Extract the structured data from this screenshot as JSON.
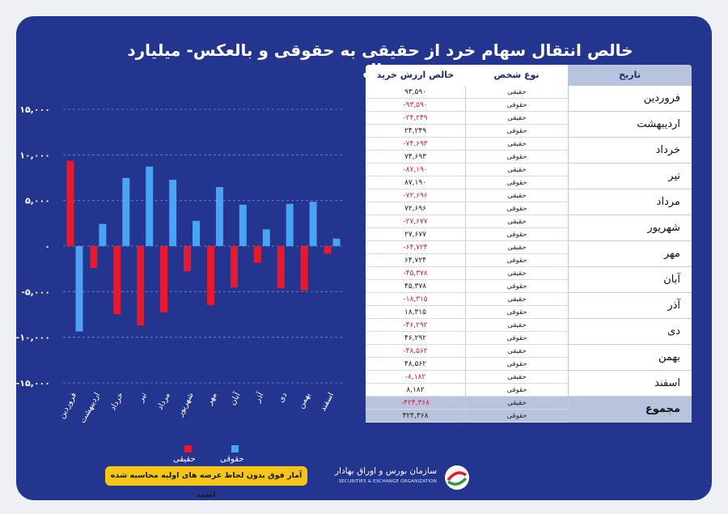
{
  "title": "خالص انتقال سهام خرد از حقیقی به حقوقی و بالعکس- میلیارد ریال",
  "colors": {
    "background": "#23358f",
    "haghighi": "#e8192c",
    "hoghoghi": "#4aa3f5",
    "negative_text": "#d22040",
    "header_fill": "#b8c3dd",
    "note_fill": "#f5c518"
  },
  "table": {
    "headers": {
      "date": "تاریخ",
      "type": "نوع شخص",
      "value": "خالص ارزش خرید"
    },
    "months": [
      {
        "name": "فروردین",
        "rows": [
          {
            "type": "حقیقی",
            "value": "۹۳,۵۹۰",
            "neg": false
          },
          {
            "type": "حقوقی",
            "value": "-۹۳,۵۹۰",
            "neg": true
          }
        ]
      },
      {
        "name": "اردیبهشت",
        "rows": [
          {
            "type": "حقیقی",
            "value": "-۲۴,۲۴۹",
            "neg": true
          },
          {
            "type": "حقوقی",
            "value": "۲۴,۲۴۹",
            "neg": false
          }
        ]
      },
      {
        "name": "خرداد",
        "rows": [
          {
            "type": "حقیقی",
            "value": "-۷۴,۶۹۳",
            "neg": true
          },
          {
            "type": "حقوقی",
            "value": "۷۴,۶۹۳",
            "neg": false
          }
        ]
      },
      {
        "name": "تیر",
        "rows": [
          {
            "type": "حقیقی",
            "value": "-۸۷,۱۹۰",
            "neg": true
          },
          {
            "type": "حقوقی",
            "value": "۸۷,۱۹۰",
            "neg": false
          }
        ]
      },
      {
        "name": "مرداد",
        "rows": [
          {
            "type": "حقیقی",
            "value": "-۷۲,۶۹۶",
            "neg": true
          },
          {
            "type": "حقوقی",
            "value": "۷۲,۶۹۶",
            "neg": false
          }
        ]
      },
      {
        "name": "شهریور",
        "rows": [
          {
            "type": "حقیقی",
            "value": "-۲۷,۶۷۷",
            "neg": true
          },
          {
            "type": "حقوقی",
            "value": "۲۷,۶۷۷",
            "neg": false
          }
        ]
      },
      {
        "name": "مهر",
        "rows": [
          {
            "type": "حقیقی",
            "value": "-۶۴,۷۲۴",
            "neg": true
          },
          {
            "type": "حقوقی",
            "value": "۶۴,۷۲۴",
            "neg": false
          }
        ]
      },
      {
        "name": "آبان",
        "rows": [
          {
            "type": "حقیقی",
            "value": "-۴۵,۳۷۸",
            "neg": true
          },
          {
            "type": "حقوقی",
            "value": "۴۵,۳۷۸",
            "neg": false
          }
        ]
      },
      {
        "name": "آذر",
        "rows": [
          {
            "type": "حقیقی",
            "value": "-۱۸,۳۱۵",
            "neg": true
          },
          {
            "type": "حقوقی",
            "value": "۱۸,۳۱۵",
            "neg": false
          }
        ]
      },
      {
        "name": "دی",
        "rows": [
          {
            "type": "حقیقی",
            "value": "-۴۶,۲۹۲",
            "neg": true
          },
          {
            "type": "حقوقی",
            "value": "۴۶,۲۹۲",
            "neg": false
          }
        ]
      },
      {
        "name": "بهمن",
        "rows": [
          {
            "type": "حقیقی",
            "value": "-۴۸,۵۶۲",
            "neg": true
          },
          {
            "type": "حقوقی",
            "value": "۴۸,۵۶۲",
            "neg": false
          }
        ]
      },
      {
        "name": "اسفند",
        "rows": [
          {
            "type": "حقیقی",
            "value": "-۸,۱۸۲",
            "neg": true
          },
          {
            "type": "حقوقی",
            "value": "۸,۱۸۲",
            "neg": false
          }
        ]
      }
    ],
    "total": {
      "name": "مجموع",
      "rows": [
        {
          "type": "حقیقی",
          "value": "-۴۲۴,۳۶۸",
          "neg": true
        },
        {
          "type": "حقوقی",
          "value": "۴۲۴,۳۶۸",
          "neg": false
        }
      ]
    }
  },
  "chart_data": {
    "type": "bar",
    "categories": [
      "فروردین",
      "اردیبهشت",
      "خرداد",
      "تیر",
      "مرداد",
      "شهریور",
      "مهر",
      "آبان",
      "آذر",
      "دی",
      "بهمن",
      "اسفند"
    ],
    "series": [
      {
        "name": "حقیقی",
        "color": "#e8192c",
        "values": [
          9359,
          -2425,
          -7469,
          -8719,
          -7270,
          -2768,
          -6472,
          -4538,
          -1832,
          -4629,
          -4856,
          -818
        ]
      },
      {
        "name": "حقوقی",
        "color": "#4aa3f5",
        "values": [
          -9359,
          2425,
          7469,
          8719,
          7270,
          2768,
          6472,
          4538,
          1832,
          4629,
          4856,
          818
        ]
      }
    ],
    "ylim": [
      -15000,
      15000
    ],
    "yticks": [
      15000,
      10000,
      5000,
      0,
      -5000,
      -10000,
      -15000
    ],
    "ytick_labels": [
      "۱۵,۰۰۰",
      "۱۰,۰۰۰",
      "۵,۰۰۰",
      "۰",
      "-۵,۰۰۰",
      "-۱۰,۰۰۰",
      "-۱۵,۰۰۰"
    ],
    "grid": "horizontal dashed",
    "legend": "bottom"
  },
  "legend": {
    "haghighi": "حقیقی",
    "hoghoghi": "حقوقی"
  },
  "footnote": "آمار فوق بدون لحاظ عرضه های اولیه محاسبه شده است",
  "organization": {
    "name_fa": "سازمان بورس و اوراق بهادار",
    "name_en": "SECURITIES & EXCHANGE ORGANIZATION",
    "logo": "seo-logo-icon"
  }
}
